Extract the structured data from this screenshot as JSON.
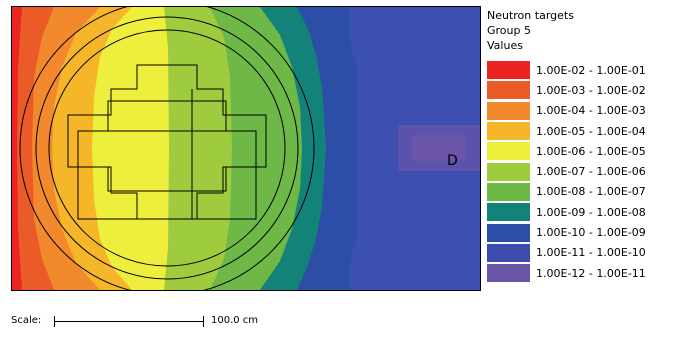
{
  "legend": {
    "title_lines": [
      "Neutron targets",
      "Group 5",
      "Values"
    ],
    "items": [
      {
        "label": "1.00E-02 - 1.00E-01",
        "color": "#ec2421"
      },
      {
        "label": "1.00E-03 - 1.00E-02",
        "color": "#ea5b27"
      },
      {
        "label": "1.00E-04 - 1.00E-03",
        "color": "#f2892d"
      },
      {
        "label": "1.00E-05 - 1.00E-04",
        "color": "#f5b62a"
      },
      {
        "label": "1.00E-06 - 1.00E-05",
        "color": "#eeee3c"
      },
      {
        "label": "1.00E-07 - 1.00E-06",
        "color": "#9fcb3f"
      },
      {
        "label": "1.00E-08 - 1.00E-07",
        "color": "#6db847"
      },
      {
        "label": "1.00E-09 - 1.00E-08",
        "color": "#138278"
      },
      {
        "label": "1.00E-10 - 1.00E-09",
        "color": "#2c4ea6"
      },
      {
        "label": "1.00E-11 - 1.00E-10",
        "color": "#3c4cad"
      },
      {
        "label": "1.00E-12 - 1.00E-11",
        "color": "#6a55a8"
      }
    ]
  },
  "plot": {
    "detector_label": "D"
  },
  "scale": {
    "label": "Scale:",
    "value": "100.0 cm"
  }
}
